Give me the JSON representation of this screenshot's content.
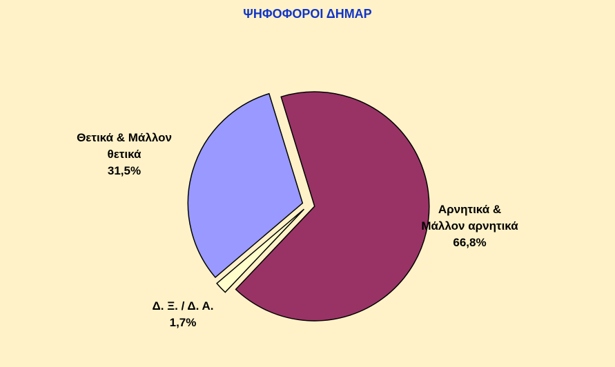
{
  "chart_data": {
    "type": "pie",
    "title": "ΨΗΦΟΦΟΡΟΙ ΔΗΜΑΡ",
    "categories": [
      "Αρνητικά & Μάλλον αρνητικά",
      "Δ. Ξ. / Δ. Α.",
      "Θετικά & Μάλλον θετικά"
    ],
    "values": [
      66.8,
      1.7,
      31.5
    ],
    "value_labels": [
      "66,8%",
      "1,7%",
      "31,5%"
    ],
    "colors": [
      "#993366",
      "#ffffcc",
      "#9999ff"
    ]
  }
}
